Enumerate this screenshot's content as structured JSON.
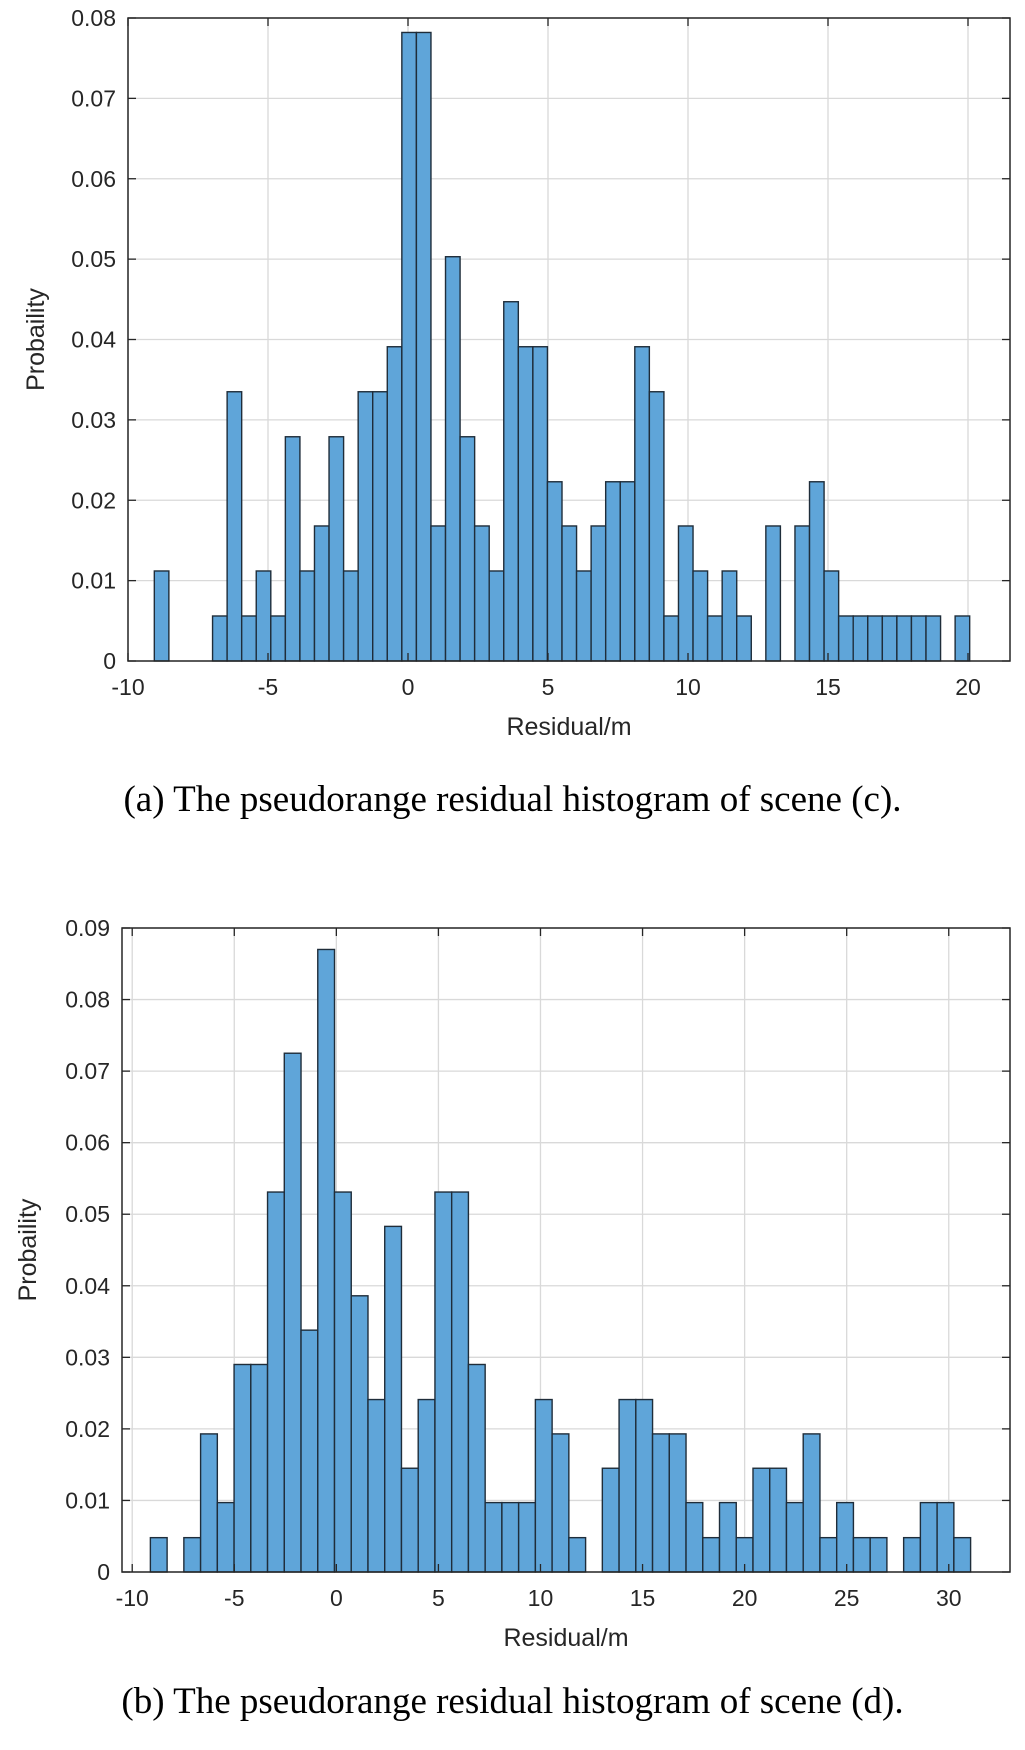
{
  "chart_data": [
    {
      "type": "bar",
      "subtype": "histogram",
      "title": "",
      "xlabel": "Residual/m",
      "ylabel": "Probaility",
      "xlim": [
        -10,
        21.5
      ],
      "ylim": [
        0,
        0.08
      ],
      "xticks": [
        -10,
        -5,
        0,
        5,
        10,
        15,
        20
      ],
      "yticks": [
        0,
        0.01,
        0.02,
        0.03,
        0.04,
        0.05,
        0.06,
        0.07,
        0.08
      ],
      "grid": true,
      "bin_width": 0.52,
      "bin_centers": [
        -8.8,
        -6.72,
        -6.2,
        -5.68,
        -5.16,
        -4.64,
        -4.12,
        -3.6,
        -3.08,
        -2.56,
        -2.04,
        -1.52,
        -1.0,
        -0.48,
        0.04,
        0.56,
        1.08,
        1.6,
        2.12,
        2.64,
        3.16,
        3.68,
        4.2,
        4.72,
        5.24,
        5.76,
        6.28,
        6.8,
        7.32,
        7.84,
        8.36,
        8.88,
        9.4,
        9.92,
        10.44,
        10.96,
        11.48,
        12.0,
        13.04,
        14.08,
        14.6,
        15.12,
        15.64,
        16.16,
        16.68,
        17.2,
        17.72,
        18.24,
        18.76,
        19.8
      ],
      "values": [
        0.0112,
        0.0056,
        0.0335,
        0.0056,
        0.0112,
        0.0056,
        0.0279,
        0.0112,
        0.0168,
        0.0279,
        0.0112,
        0.0335,
        0.0335,
        0.0391,
        0.0782,
        0.0782,
        0.0168,
        0.0503,
        0.0279,
        0.0168,
        0.0112,
        0.0447,
        0.0391,
        0.0391,
        0.0223,
        0.0168,
        0.0112,
        0.0168,
        0.0223,
        0.0223,
        0.0391,
        0.0335,
        0.0056,
        0.0168,
        0.0112,
        0.0056,
        0.0112,
        0.0056,
        0.0168,
        0.0168,
        0.0223,
        0.0112,
        0.0056,
        0.0056,
        0.0056,
        0.0056,
        0.0056,
        0.0056,
        0.0056,
        0.0056
      ],
      "bar_color": "#5fa5d9",
      "edge_color": "#1f2d3a"
    },
    {
      "type": "bar",
      "subtype": "histogram",
      "title": "",
      "xlabel": "Residual/m",
      "ylabel": "Probaility",
      "xlim": [
        -10.5,
        33
      ],
      "ylim": [
        0,
        0.09
      ],
      "xticks": [
        -10,
        -5,
        0,
        5,
        10,
        15,
        20,
        25,
        30
      ],
      "yticks": [
        0,
        0.01,
        0.02,
        0.03,
        0.04,
        0.05,
        0.06,
        0.07,
        0.08,
        0.09
      ],
      "grid": true,
      "bin_width": 0.82,
      "bin_centers": [
        -8.7,
        -7.06,
        -6.24,
        -5.42,
        -4.6,
        -3.78,
        -2.96,
        -2.14,
        -1.32,
        -0.5,
        0.32,
        1.14,
        1.96,
        2.78,
        3.6,
        4.42,
        5.24,
        6.06,
        6.88,
        7.7,
        8.52,
        9.34,
        10.16,
        10.98,
        11.8,
        13.44,
        14.26,
        15.08,
        15.9,
        16.72,
        17.54,
        18.36,
        19.18,
        20.0,
        20.82,
        21.64,
        22.46,
        23.28,
        24.1,
        24.92,
        25.74,
        26.56,
        28.2,
        29.02,
        29.84,
        30.66
      ],
      "values": [
        0.0048,
        0.0048,
        0.0193,
        0.0097,
        0.029,
        0.029,
        0.0531,
        0.0725,
        0.0338,
        0.087,
        0.0531,
        0.0386,
        0.0241,
        0.0483,
        0.0145,
        0.0241,
        0.0531,
        0.0531,
        0.029,
        0.0097,
        0.0097,
        0.0097,
        0.0241,
        0.0193,
        0.0048,
        0.0145,
        0.0241,
        0.0241,
        0.0193,
        0.0193,
        0.0097,
        0.0048,
        0.0097,
        0.0048,
        0.0145,
        0.0145,
        0.0097,
        0.0193,
        0.0048,
        0.0097,
        0.0048,
        0.0048,
        0.0048,
        0.0097,
        0.0097,
        0.0048
      ],
      "bar_color": "#5fa5d9",
      "edge_color": "#1f2d3a"
    }
  ],
  "captions": {
    "a": "(a) The pseudorange residual histogram of scene (c).",
    "b": "(b) The pseudorange residual histogram of scene (d)."
  },
  "colors": {
    "grid": "#d9d9d9",
    "axis": "#262626"
  }
}
